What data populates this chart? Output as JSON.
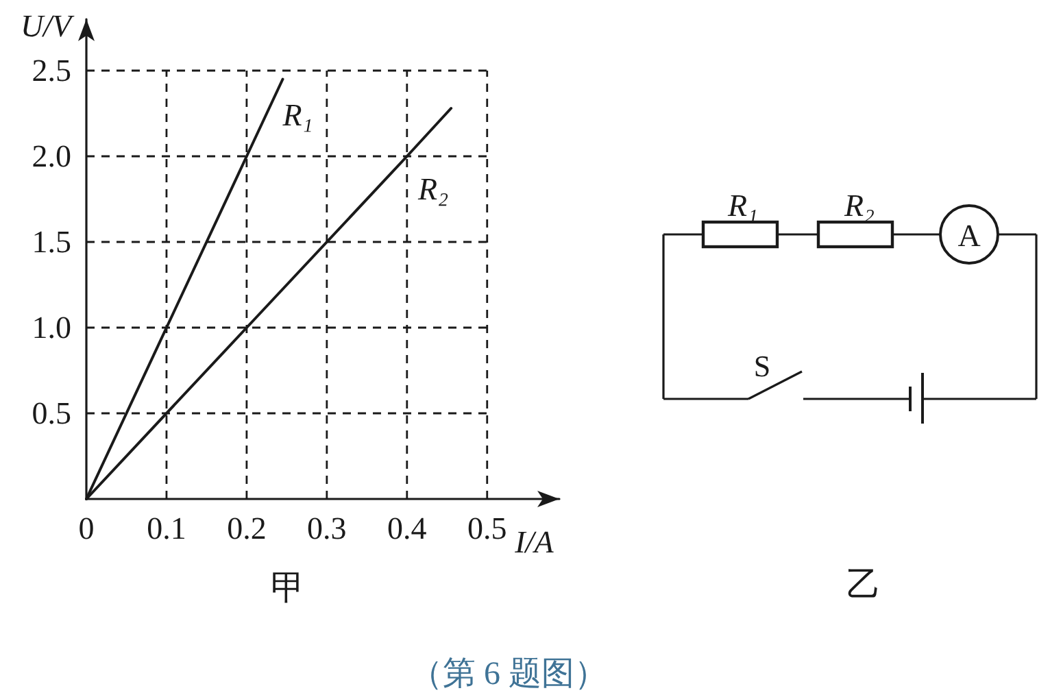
{
  "chart_data": [
    {
      "type": "line",
      "title": "甲",
      "xlabel": "I/A",
      "ylabel": "U/V",
      "annotations": [
        "（第 6 题图）"
      ],
      "series": [
        {
          "name": "R₁",
          "color": "#1a1a1a",
          "x": [
            0,
            0.1,
            0.2,
            0.245
          ],
          "values": [
            0,
            1,
            2,
            2.45
          ]
        },
        {
          "name": "R₂",
          "color": "#1a1a1a",
          "x": [
            0,
            0.2,
            0.4,
            0.455
          ],
          "values": [
            0,
            1,
            2,
            2.28
          ]
        }
      ],
      "xlim": [
        0,
        0.59
      ],
      "ylim": [
        0,
        2.8
      ],
      "xticks": [
        0,
        0.1,
        0.2,
        0.3,
        0.4,
        0.5
      ],
      "yticks": [
        0.5,
        {
          "value": 1,
          "label": "1.0"
        },
        1.5,
        {
          "value": 2,
          "label": "2.0"
        },
        2.5
      ],
      "grid": true,
      "legend": false,
      "marker": "none",
      "line_style": "solid"
    },
    {
      "type": "other",
      "title": "乙",
      "annotations": [
        "R₁",
        "R₂",
        "A",
        "S"
      ]
    }
  ]
}
